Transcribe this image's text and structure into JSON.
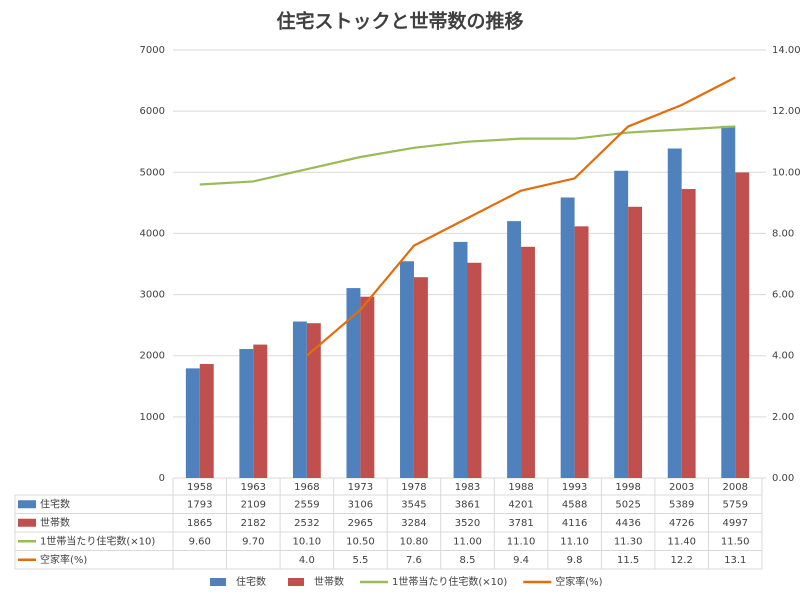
{
  "chart_data": {
    "type": "bar-line",
    "title": "住宅ストックと世帯数の推移",
    "categories": [
      "1958",
      "1963",
      "1968",
      "1973",
      "1978",
      "1983",
      "1988",
      "1993",
      "1998",
      "2003",
      "2008"
    ],
    "series": [
      {
        "name": "住宅数",
        "type": "bar",
        "color": "#4f81bd",
        "values": [
          1793,
          2109,
          2559,
          3106,
          3545,
          3861,
          4201,
          4588,
          5025,
          5389,
          5759
        ]
      },
      {
        "name": "世帯数",
        "type": "bar",
        "color": "#c0504d",
        "values": [
          1865,
          2182,
          2532,
          2965,
          3284,
          3520,
          3781,
          4116,
          4436,
          4726,
          4997
        ]
      },
      {
        "name": "1世帯当たり住宅数(×10)",
        "type": "line",
        "axis": "y2",
        "color": "#9bbb59",
        "values": [
          9.6,
          9.7,
          10.1,
          10.5,
          10.8,
          11.0,
          11.1,
          11.1,
          11.3,
          11.4,
          11.5
        ],
        "value_labels": [
          "9.60",
          "9.70",
          "10.10",
          "10.50",
          "10.80",
          "11.00",
          "11.10",
          "11.10",
          "11.30",
          "11.40",
          "11.50"
        ]
      },
      {
        "name": "空家率(%)",
        "type": "line",
        "axis": "y2",
        "color": "#e46c0a",
        "values": [
          null,
          null,
          4.0,
          5.5,
          7.6,
          8.5,
          9.4,
          9.8,
          11.5,
          12.2,
          13.1
        ],
        "value_labels": [
          null,
          null,
          "4.0",
          "5.5",
          "7.6",
          "8.5",
          "9.4",
          "9.8",
          "11.5",
          "12.2",
          "13.1"
        ]
      }
    ],
    "ylim": [
      0,
      7000
    ],
    "yticks": [
      0,
      1000,
      2000,
      3000,
      4000,
      5000,
      6000,
      7000
    ],
    "y2lim": [
      0,
      14
    ],
    "y2ticks": [
      {
        "value": 0,
        "label": "0.00"
      },
      {
        "value": 2,
        "label": "2.00"
      },
      {
        "value": 4,
        "label": "4.00"
      },
      {
        "value": 6,
        "label": "6.00"
      },
      {
        "value": 8,
        "label": "8.00"
      },
      {
        "value": 10,
        "label": "10.00"
      },
      {
        "value": 12,
        "label": "12.00"
      },
      {
        "value": 14,
        "label": "14.00"
      }
    ],
    "grid": true,
    "legend": "bottom"
  }
}
